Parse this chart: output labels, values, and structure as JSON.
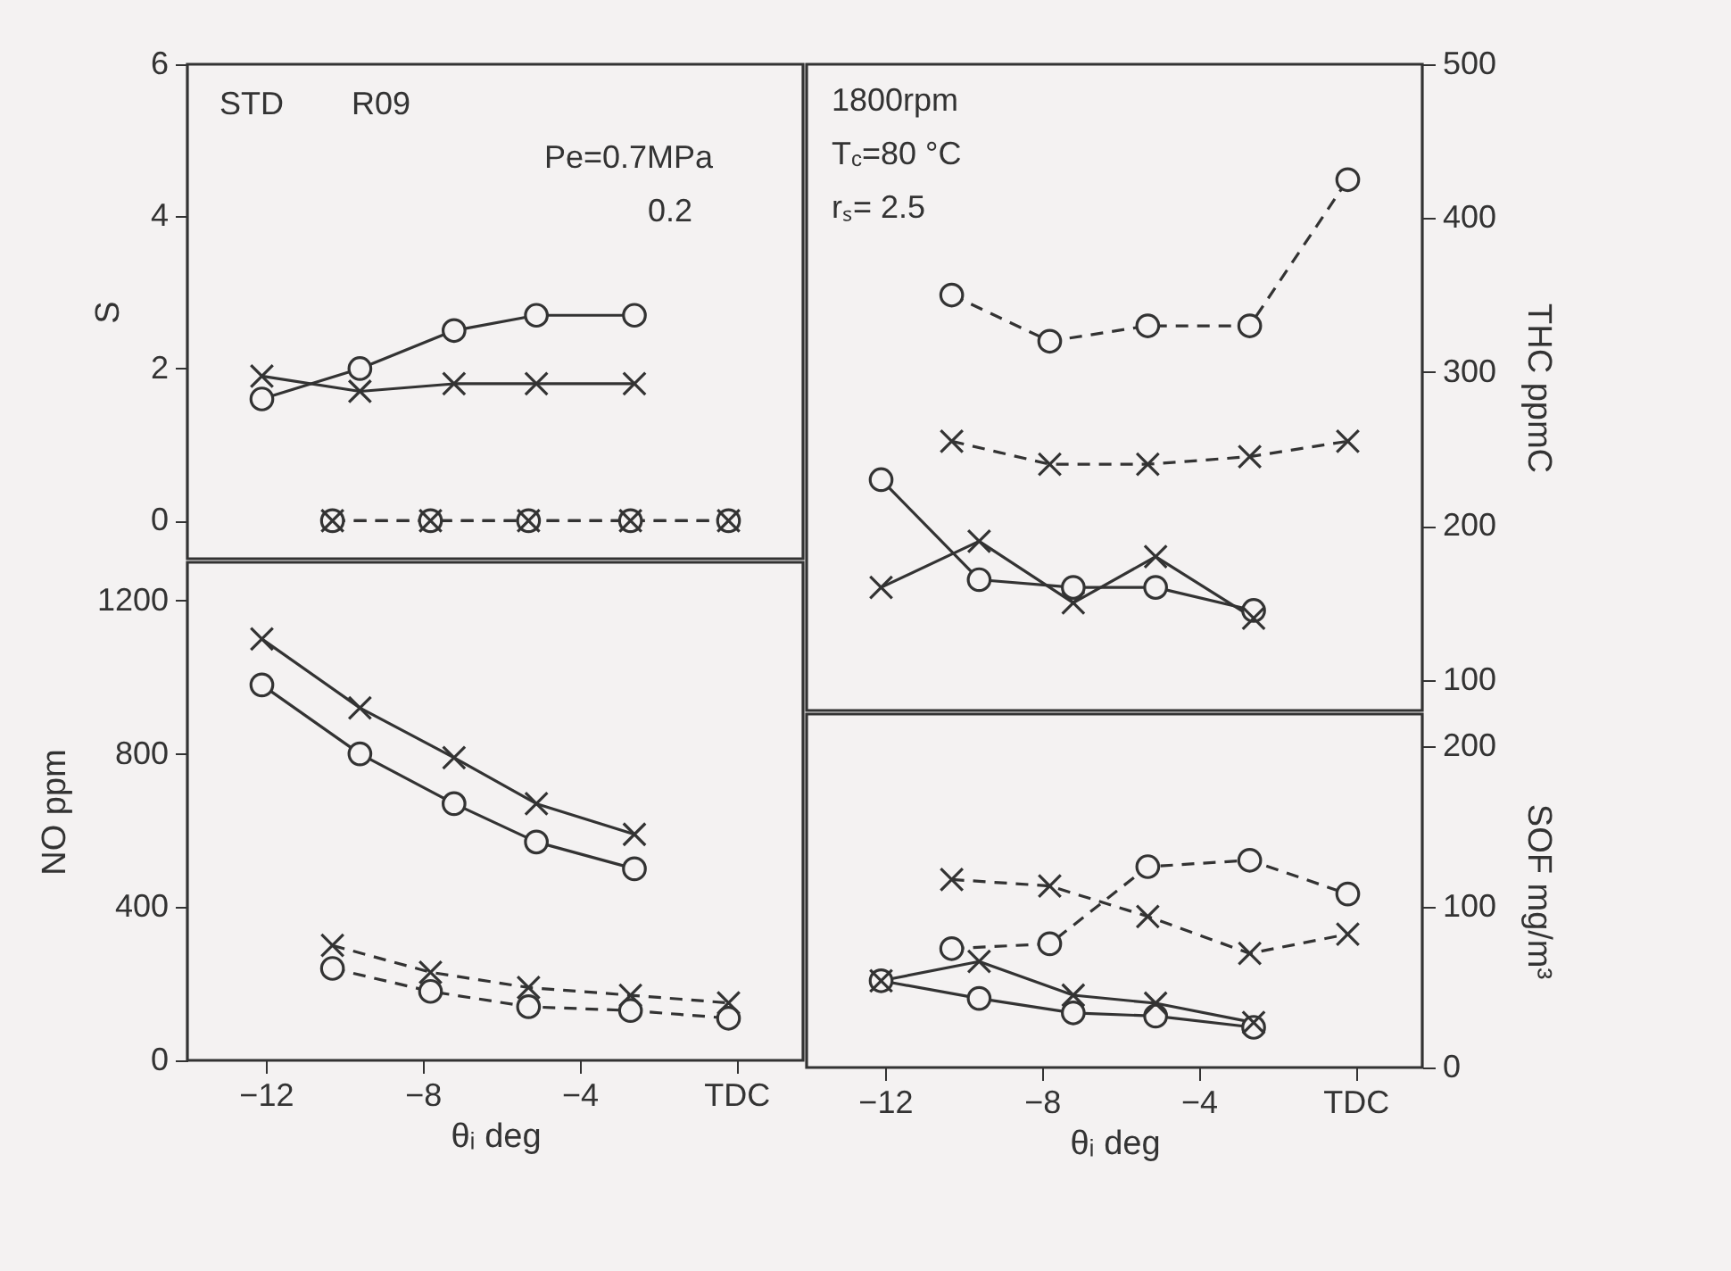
{
  "chart_data": [
    {
      "type": "line",
      "ylabel": "S",
      "xlim": [
        -14,
        1.7
      ],
      "ylim": [
        -0.5,
        6
      ],
      "yticks": [
        0,
        2,
        4,
        6
      ],
      "tick_labels": "y",
      "annotations": [
        "STD",
        "R09",
        "Pe=0.7MPa",
        "0.2"
      ],
      "series": [
        {
          "color": "#333333",
          "marker": "circle",
          "line_style": "solid",
          "x": [
            -12.1,
            -9.6,
            -7.2,
            -5.1,
            -2.6
          ],
          "values": [
            1.6,
            2.0,
            2.5,
            2.7,
            2.7
          ]
        },
        {
          "color": "#333333",
          "marker": "cross",
          "line_style": "solid",
          "x": [
            -12.1,
            -9.6,
            -7.2,
            -5.1,
            -2.6
          ],
          "values": [
            1.9,
            1.7,
            1.8,
            1.8,
            1.8
          ]
        },
        {
          "color": "#333333",
          "marker": "circle",
          "line_style": "dashed",
          "x": [
            -10.3,
            -7.8,
            -5.3,
            -2.7,
            -0.2
          ],
          "values": [
            0,
            0,
            0,
            0,
            0
          ]
        },
        {
          "color": "#333333",
          "marker": "cross",
          "line_style": "dashed",
          "x": [
            -10.3,
            -7.8,
            -5.3,
            -2.7,
            -0.2
          ],
          "values": [
            0,
            0,
            0,
            0,
            0
          ]
        }
      ]
    },
    {
      "type": "line",
      "xlabel": "θᵢ      deg",
      "ylabel": "NO    ppm",
      "xlim": [
        -14,
        1.7
      ],
      "xticks": [
        -12,
        -8,
        -4,
        {
          "value": 0,
          "label": "TDC"
        }
      ],
      "ylim": [
        0,
        1300
      ],
      "yticks": [
        0,
        400,
        800,
        1200
      ],
      "series": [
        {
          "color": "#333333",
          "marker": "circle",
          "line_style": "solid",
          "x": [
            -12.1,
            -9.6,
            -7.2,
            -5.1,
            -2.6
          ],
          "values": [
            980,
            800,
            670,
            570,
            500
          ]
        },
        {
          "color": "#333333",
          "marker": "cross",
          "line_style": "solid",
          "x": [
            -12.1,
            -9.6,
            -7.2,
            -5.1,
            -2.6
          ],
          "values": [
            1100,
            920,
            790,
            670,
            590
          ]
        },
        {
          "color": "#333333",
          "marker": "circle",
          "line_style": "dashed",
          "x": [
            -10.3,
            -7.8,
            -5.3,
            -2.7,
            -0.2
          ],
          "values": [
            240,
            180,
            140,
            130,
            110
          ]
        },
        {
          "color": "#333333",
          "marker": "cross",
          "line_style": "dashed",
          "x": [
            -10.3,
            -7.8,
            -5.3,
            -2.7,
            -0.2
          ],
          "values": [
            300,
            230,
            190,
            170,
            150
          ]
        }
      ]
    },
    {
      "type": "line",
      "y2label": "THC    ppmC",
      "xlim": [
        -14,
        1.7
      ],
      "y2lim": [
        80,
        500
      ],
      "y2ticks": [
        100,
        200,
        300,
        400,
        500
      ],
      "tick_labels": "y",
      "annotations": [
        "1800rpm",
        "T$_{c}$=80 °C",
        "rₛ= 2.5"
      ],
      "series": [
        {
          "color": "#333333",
          "marker": "circle",
          "line_style": "solid",
          "axis": "y2",
          "x": [
            -12.1,
            -9.6,
            -7.2,
            -5.1,
            -2.6
          ],
          "values": [
            230,
            165,
            160,
            160,
            145
          ]
        },
        {
          "color": "#333333",
          "marker": "cross",
          "line_style": "solid",
          "axis": "y2",
          "x": [
            -12.1,
            -9.6,
            -7.2,
            -5.1,
            -2.6
          ],
          "values": [
            160,
            190,
            150,
            180,
            140
          ]
        },
        {
          "color": "#333333",
          "marker": "circle",
          "line_style": "dashed",
          "axis": "y2",
          "x": [
            -10.3,
            -7.8,
            -5.3,
            -2.7,
            -0.2
          ],
          "values": [
            350,
            320,
            330,
            330,
            425
          ]
        },
        {
          "color": "#333333",
          "marker": "cross",
          "line_style": "dashed",
          "axis": "y2",
          "x": [
            -10.3,
            -7.8,
            -5.3,
            -2.7,
            -0.2
          ],
          "values": [
            255,
            240,
            240,
            245,
            255
          ]
        }
      ]
    },
    {
      "type": "line",
      "xlabel": "θᵢ      deg",
      "y2label": "SOF    mg/m³",
      "xlim": [
        -14,
        1.7
      ],
      "xticks": [
        -12,
        -8,
        -4,
        {
          "value": 0,
          "label": "TDC"
        }
      ],
      "y2lim": [
        0,
        220
      ],
      "y2ticks": [
        0,
        100,
        200
      ],
      "series": [
        {
          "color": "#333333",
          "marker": "circle",
          "line_style": "solid",
          "axis": "y2",
          "x": [
            -12.1,
            -9.6,
            -7.2,
            -5.1,
            -2.6
          ],
          "values": [
            54,
            43,
            34,
            32,
            25
          ]
        },
        {
          "color": "#333333",
          "marker": "cross",
          "line_style": "solid",
          "axis": "y2",
          "x": [
            -12.1,
            -9.6,
            -7.2,
            -5.1,
            -2.6
          ],
          "values": [
            54,
            66,
            45,
            40,
            28
          ]
        },
        {
          "color": "#333333",
          "marker": "circle",
          "line_style": "dashed",
          "axis": "y2",
          "x": [
            -10.3,
            -7.8,
            -5.3,
            -2.7,
            -0.2
          ],
          "values": [
            74,
            77,
            125,
            129,
            108
          ]
        },
        {
          "color": "#333333",
          "marker": "cross",
          "line_style": "dashed",
          "axis": "y2",
          "x": [
            -10.3,
            -7.8,
            -5.3,
            -2.7,
            -0.2
          ],
          "values": [
            117,
            113,
            94,
            71,
            83
          ]
        }
      ]
    }
  ]
}
